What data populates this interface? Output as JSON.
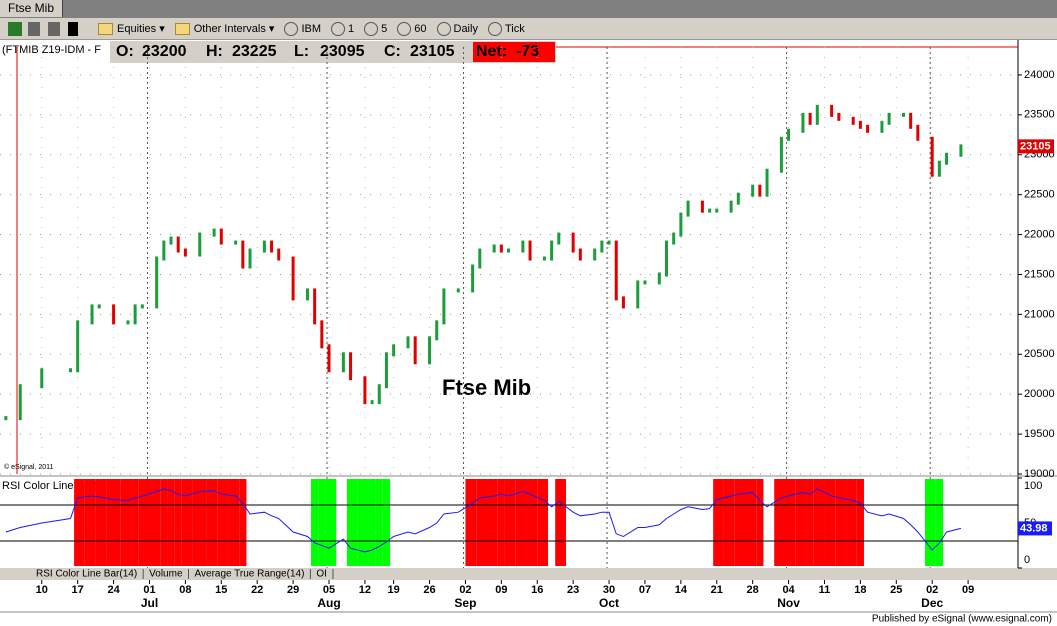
{
  "window_tab": "Ftse Mib",
  "toolbar": {
    "items": [
      "Equities",
      "Other Intervals",
      "IBM",
      "1",
      "5",
      "60",
      "Daily",
      "Tick"
    ]
  },
  "quote": {
    "symbol": "(FTMIB Z19-IDM - F",
    "fields": [
      {
        "label": "O:",
        "value": 23200
      },
      {
        "label": "H:",
        "value": 23225
      },
      {
        "label": "L:",
        "value": 23095
      },
      {
        "label": "C:",
        "value": 23105
      }
    ],
    "net": {
      "label": "Net:",
      "value": -73
    }
  },
  "chart_data": {
    "type": "bar",
    "title": "Ftse Mib",
    "copyright": "© eSignal, 2011",
    "up_color": "#1a9e3a",
    "down_color": "#e00000",
    "x": [
      0,
      2,
      5,
      9,
      10,
      12,
      13,
      15,
      17,
      18,
      19,
      21,
      22,
      23,
      24,
      25,
      27,
      29,
      30,
      32,
      33,
      34,
      36,
      37,
      38,
      40,
      42,
      43,
      44,
      45,
      47,
      48,
      50,
      51,
      52,
      53,
      54,
      56,
      57,
      59,
      60,
      61,
      63,
      65,
      66,
      68,
      69,
      70,
      72,
      73,
      75,
      76,
      77,
      79,
      80,
      82,
      83,
      84,
      85,
      86,
      88,
      89,
      91,
      92,
      93,
      94,
      95,
      97,
      98,
      99,
      101,
      102,
      104,
      105,
      106,
      108,
      109,
      111,
      112,
      113,
      115,
      116,
      118,
      119,
      120,
      122,
      123,
      125,
      126,
      127,
      129,
      130,
      131,
      133
    ],
    "values": [
      19700,
      20100,
      20300,
      20300,
      20900,
      21100,
      21100,
      20900,
      20900,
      21100,
      21100,
      21700,
      21900,
      21950,
      21800,
      21750,
      22000,
      22050,
      21900,
      21900,
      21600,
      21800,
      21900,
      21800,
      21700,
      21200,
      21300,
      20900,
      20600,
      20300,
      20500,
      20200,
      19900,
      19900,
      20100,
      20500,
      20600,
      20700,
      20400,
      20700,
      20900,
      21300,
      21300,
      21600,
      21800,
      21850,
      21800,
      21800,
      21900,
      21700,
      21700,
      21900,
      22000,
      21800,
      21700,
      21800,
      21900,
      21900,
      21200,
      21100,
      21400,
      21400,
      21500,
      21900,
      22000,
      22250,
      22400,
      22300,
      22300,
      22300,
      22400,
      22500,
      22600,
      22500,
      22800,
      23200,
      23300,
      23500,
      23400,
      23600,
      23500,
      23450,
      23400,
      23350,
      23300,
      23400,
      23500,
      23500,
      23350,
      23200,
      22750,
      22900,
      23000,
      23105
    ],
    "xlim": [
      -0.4,
      139
    ],
    "ylim": [
      19000,
      24350
    ],
    "yticks": [
      19000,
      19500,
      20000,
      20500,
      21000,
      21500,
      22000,
      22500,
      23000,
      23500,
      24000
    ],
    "xticks": [
      {
        "value": 5,
        "label": "10"
      },
      {
        "value": 10,
        "label": "17"
      },
      {
        "value": 15,
        "label": "24"
      },
      {
        "value": 20,
        "label": "01"
      },
      {
        "value": 25,
        "label": "08"
      },
      {
        "value": 30,
        "label": "15"
      },
      {
        "value": 35,
        "label": "22"
      },
      {
        "value": 40,
        "label": "29"
      },
      {
        "value": 45,
        "label": "05"
      },
      {
        "value": 50,
        "label": "12"
      },
      {
        "value": 54,
        "label": "19"
      },
      {
        "value": 59,
        "label": "26"
      },
      {
        "value": 64,
        "label": "02"
      },
      {
        "value": 69,
        "label": "09"
      },
      {
        "value": 74,
        "label": "16"
      },
      {
        "value": 79,
        "label": "23"
      },
      {
        "value": 84,
        "label": "30"
      },
      {
        "value": 89,
        "label": "07"
      },
      {
        "value": 94,
        "label": "14"
      },
      {
        "value": 99,
        "label": "21"
      },
      {
        "value": 104,
        "label": "28"
      },
      {
        "value": 109,
        "label": "04"
      },
      {
        "value": 114,
        "label": "11"
      },
      {
        "value": 119,
        "label": "18"
      },
      {
        "value": 124,
        "label": "25"
      },
      {
        "value": 129,
        "label": "02"
      },
      {
        "value": 134,
        "label": "09"
      }
    ],
    "months": [
      {
        "value": 20,
        "label": "Jul"
      },
      {
        "value": 45,
        "label": "Aug"
      },
      {
        "value": 64,
        "label": "Sep"
      },
      {
        "value": 84,
        "label": "Oct"
      },
      {
        "value": 109,
        "label": "Nov"
      },
      {
        "value": 129,
        "label": "Dec"
      }
    ],
    "grid": true,
    "rsi": {
      "name": "RSI Color Line Bar(14)",
      "color": "#1a1aff",
      "over_color": "#ff0000",
      "under_color": "#00ff00",
      "values": [
        40,
        45,
        50,
        55,
        78,
        80,
        79,
        76,
        75,
        78,
        80,
        85,
        88,
        86,
        82,
        80,
        85,
        86,
        82,
        80,
        72,
        60,
        62,
        58,
        55,
        40,
        35,
        28,
        25,
        22,
        32,
        22,
        18,
        20,
        24,
        29,
        35,
        40,
        38,
        45,
        50,
        60,
        62,
        72,
        78,
        80,
        82,
        80,
        85,
        82,
        75,
        68,
        74,
        62,
        58,
        60,
        62,
        62,
        38,
        35,
        45,
        45,
        48,
        55,
        60,
        65,
        68,
        65,
        66,
        76,
        80,
        82,
        84,
        75,
        68,
        78,
        80,
        84,
        82,
        88,
        80,
        78,
        75,
        72,
        62,
        58,
        60,
        55,
        48,
        40,
        20,
        28,
        40,
        43.98
      ],
      "ylim": [
        0,
        100
      ],
      "yticks": [
        0,
        50,
        100
      ],
      "levels": [
        30,
        70
      ]
    }
  },
  "bottom_tabs": [
    "RSI Color Line Bar(14)",
    "Volume",
    "Average True Range(14)",
    "OI"
  ],
  "footer": "Published by eSignal (www.esignal.com)"
}
